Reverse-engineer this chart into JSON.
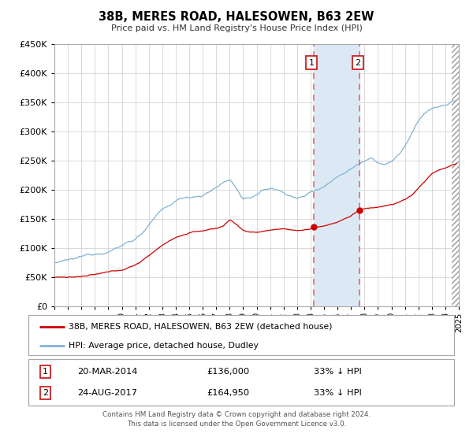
{
  "title": "38B, MERES ROAD, HALESOWEN, B63 2EW",
  "subtitle": "Price paid vs. HM Land Registry's House Price Index (HPI)",
  "legend_line1": "38B, MERES ROAD, HALESOWEN, B63 2EW (detached house)",
  "legend_line2": "HPI: Average price, detached house, Dudley",
  "sale1_date": 2014.22,
  "sale1_price": 136000,
  "sale1_label": "20-MAR-2014",
  "sale1_price_str": "£136,000",
  "sale1_pct": "33% ↓ HPI",
  "sale2_date": 2017.65,
  "sale2_price": 164950,
  "sale2_label": "24-AUG-2017",
  "sale2_price_str": "£164,950",
  "sale2_pct": "33% ↓ HPI",
  "hpi_color": "#7fb3d3",
  "price_color": "#cc0000",
  "shade_color": "#dce9f5",
  "dashed_color": "#e06060",
  "background_color": "#ffffff",
  "grid_color": "#cccccc",
  "xlim": [
    1995,
    2025
  ],
  "ylim": [
    0,
    450000
  ],
  "yticks": [
    0,
    50000,
    100000,
    150000,
    200000,
    250000,
    300000,
    350000,
    400000,
    450000
  ],
  "footnote": "Contains HM Land Registry data © Crown copyright and database right 2024.\nThis data is licensed under the Open Government Licence v3.0.",
  "hpi_keypoints": [
    [
      1995.0,
      75000
    ],
    [
      1995.5,
      76000
    ],
    [
      1996.0,
      77000
    ],
    [
      1996.5,
      78500
    ],
    [
      1997.0,
      81000
    ],
    [
      1997.5,
      84000
    ],
    [
      1998.0,
      87000
    ],
    [
      1998.5,
      91000
    ],
    [
      1999.0,
      95000
    ],
    [
      1999.5,
      100000
    ],
    [
      2000.0,
      105000
    ],
    [
      2000.5,
      112000
    ],
    [
      2001.0,
      118000
    ],
    [
      2001.5,
      128000
    ],
    [
      2002.0,
      142000
    ],
    [
      2002.5,
      155000
    ],
    [
      2003.0,
      165000
    ],
    [
      2003.5,
      172000
    ],
    [
      2004.0,
      180000
    ],
    [
      2004.5,
      185000
    ],
    [
      2005.0,
      188000
    ],
    [
      2005.5,
      190000
    ],
    [
      2006.0,
      193000
    ],
    [
      2006.5,
      198000
    ],
    [
      2007.0,
      205000
    ],
    [
      2007.5,
      213000
    ],
    [
      2008.0,
      220000
    ],
    [
      2008.5,
      205000
    ],
    [
      2009.0,
      183000
    ],
    [
      2009.5,
      185000
    ],
    [
      2010.0,
      192000
    ],
    [
      2010.5,
      200000
    ],
    [
      2011.0,
      203000
    ],
    [
      2011.5,
      200000
    ],
    [
      2012.0,
      196000
    ],
    [
      2012.5,
      192000
    ],
    [
      2013.0,
      186000
    ],
    [
      2013.5,
      190000
    ],
    [
      2014.0,
      197000
    ],
    [
      2014.5,
      203000
    ],
    [
      2015.0,
      210000
    ],
    [
      2015.5,
      218000
    ],
    [
      2016.0,
      227000
    ],
    [
      2016.5,
      235000
    ],
    [
      2017.0,
      242000
    ],
    [
      2017.5,
      250000
    ],
    [
      2018.0,
      258000
    ],
    [
      2018.5,
      265000
    ],
    [
      2019.0,
      258000
    ],
    [
      2019.5,
      255000
    ],
    [
      2020.0,
      258000
    ],
    [
      2020.5,
      270000
    ],
    [
      2021.0,
      285000
    ],
    [
      2021.5,
      305000
    ],
    [
      2022.0,
      325000
    ],
    [
      2022.5,
      340000
    ],
    [
      2023.0,
      348000
    ],
    [
      2023.5,
      350000
    ],
    [
      2024.0,
      352000
    ],
    [
      2024.5,
      358000
    ],
    [
      2024.83,
      360000
    ]
  ],
  "price_keypoints": [
    [
      1995.0,
      50000
    ],
    [
      1995.5,
      50500
    ],
    [
      1996.0,
      51000
    ],
    [
      1996.5,
      51500
    ],
    [
      1997.0,
      52000
    ],
    [
      1997.5,
      53000
    ],
    [
      1998.0,
      54000
    ],
    [
      1998.5,
      55500
    ],
    [
      1999.0,
      57000
    ],
    [
      1999.5,
      58500
    ],
    [
      2000.0,
      61000
    ],
    [
      2000.5,
      65000
    ],
    [
      2001.0,
      70000
    ],
    [
      2001.5,
      77000
    ],
    [
      2002.0,
      85000
    ],
    [
      2002.5,
      95000
    ],
    [
      2003.0,
      104000
    ],
    [
      2003.5,
      112000
    ],
    [
      2004.0,
      118000
    ],
    [
      2004.5,
      122000
    ],
    [
      2005.0,
      126000
    ],
    [
      2005.5,
      129000
    ],
    [
      2006.0,
      130000
    ],
    [
      2006.5,
      131000
    ],
    [
      2007.0,
      133000
    ],
    [
      2007.5,
      137000
    ],
    [
      2008.0,
      148000
    ],
    [
      2008.5,
      141000
    ],
    [
      2009.0,
      130000
    ],
    [
      2009.5,
      127000
    ],
    [
      2010.0,
      127000
    ],
    [
      2010.5,
      129000
    ],
    [
      2011.0,
      131000
    ],
    [
      2011.5,
      132000
    ],
    [
      2012.0,
      131000
    ],
    [
      2012.5,
      130000
    ],
    [
      2013.0,
      129000
    ],
    [
      2013.5,
      130000
    ],
    [
      2014.0,
      132000
    ],
    [
      2014.22,
      136000
    ],
    [
      2014.5,
      135000
    ],
    [
      2015.0,
      137000
    ],
    [
      2015.5,
      140000
    ],
    [
      2016.0,
      144000
    ],
    [
      2016.5,
      150000
    ],
    [
      2017.0,
      155000
    ],
    [
      2017.65,
      164950
    ],
    [
      2018.0,
      166000
    ],
    [
      2018.5,
      168000
    ],
    [
      2019.0,
      170000
    ],
    [
      2019.5,
      172000
    ],
    [
      2020.0,
      174000
    ],
    [
      2020.5,
      178000
    ],
    [
      2021.0,
      183000
    ],
    [
      2021.5,
      190000
    ],
    [
      2022.0,
      203000
    ],
    [
      2022.5,
      215000
    ],
    [
      2023.0,
      228000
    ],
    [
      2023.5,
      234000
    ],
    [
      2024.0,
      237000
    ],
    [
      2024.5,
      242000
    ],
    [
      2024.83,
      245000
    ]
  ]
}
